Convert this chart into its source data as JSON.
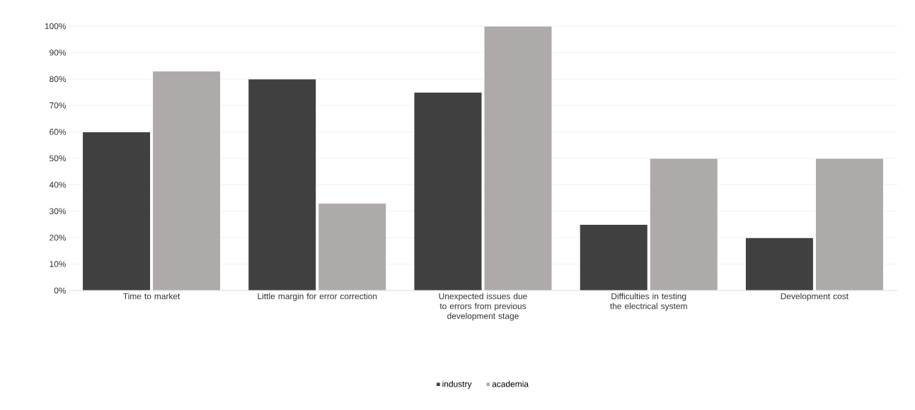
{
  "chart_data": {
    "type": "bar",
    "categories": [
      "Time to market",
      "Little margin for error correction",
      "Unexpected issues due to errors from previous development stage",
      "Difficulties in testing the electrical system",
      "Development cost"
    ],
    "series": [
      {
        "name": "industry",
        "color": "#404040",
        "values": [
          60,
          80,
          75,
          25,
          20
        ]
      },
      {
        "name": "academia",
        "color": "#aeaaaa",
        "values": [
          83,
          33,
          100,
          50,
          50
        ]
      }
    ],
    "ylim": [
      0,
      100
    ],
    "yticks": [
      {
        "value": 0,
        "label": "0%"
      },
      {
        "value": 10,
        "label": "10%"
      },
      {
        "value": 20,
        "label": "20%"
      },
      {
        "value": 30,
        "label": "30%"
      },
      {
        "value": 40,
        "label": "40%"
      },
      {
        "value": 50,
        "label": "50%"
      },
      {
        "value": 60,
        "label": "60%"
      },
      {
        "value": 70,
        "label": "70%"
      },
      {
        "value": 80,
        "label": "80%"
      },
      {
        "value": 90,
        "label": "90%"
      },
      {
        "value": 100,
        "label": "100%"
      }
    ],
    "grid": "y",
    "legend": "bottom"
  }
}
